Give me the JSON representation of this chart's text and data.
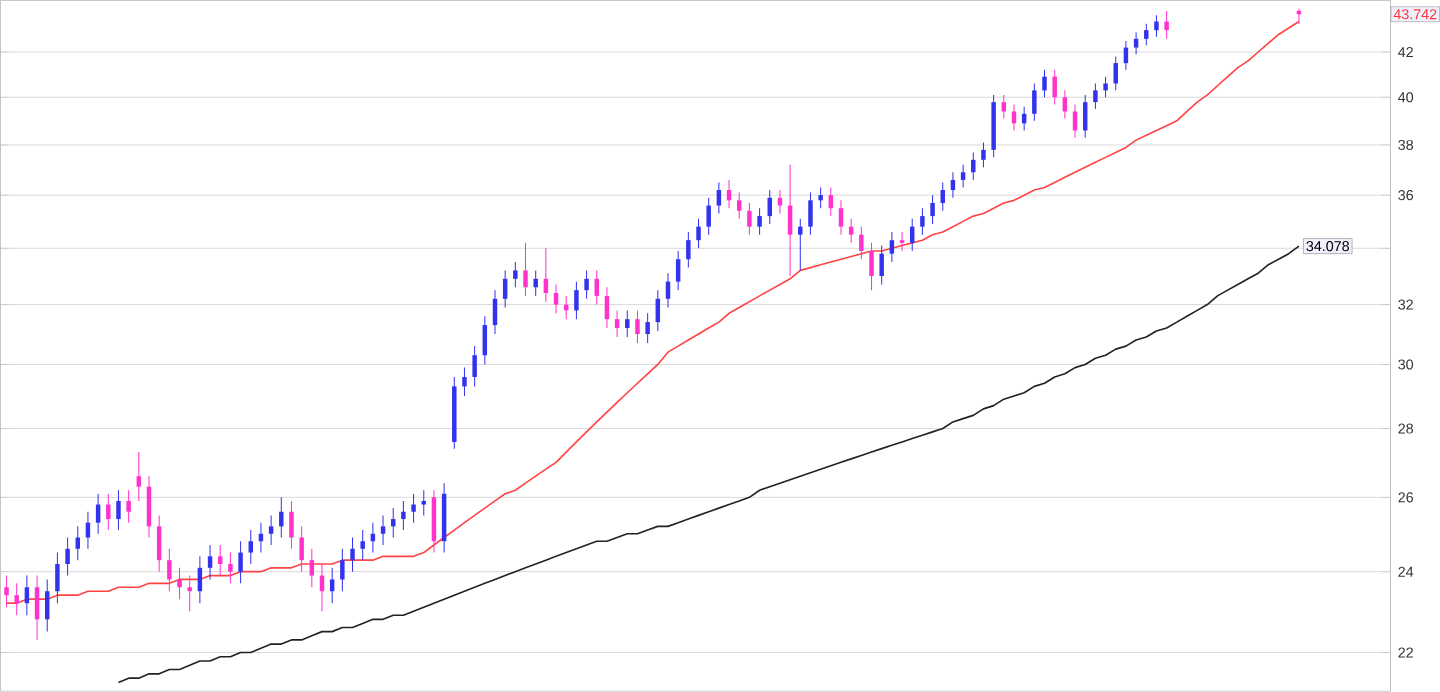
{
  "chart_data": {
    "type": "candlestick",
    "categories": [
      null,
      null,
      null,
      null,
      null,
      null,
      null,
      null,
      null,
      null,
      null,
      null,
      null,
      null,
      null,
      null,
      null,
      null,
      null,
      null,
      null,
      null,
      null,
      null,
      null,
      null,
      null,
      null,
      null,
      null,
      null,
      null,
      null,
      null,
      null,
      null,
      null,
      null,
      null,
      null,
      null,
      null,
      null,
      null,
      null,
      null,
      null,
      null,
      null,
      null,
      null,
      null,
      null,
      null,
      null,
      null,
      null,
      null,
      null,
      null,
      null,
      null,
      null,
      null,
      null,
      null,
      null,
      null,
      null,
      null,
      null,
      null,
      null,
      null,
      null,
      null,
      null,
      null,
      null,
      null,
      null,
      null,
      null,
      null,
      null,
      null,
      null,
      null,
      null,
      null,
      null,
      null,
      null,
      null,
      null,
      null,
      null,
      null,
      null,
      null,
      null,
      null,
      null,
      null,
      null,
      null,
      null,
      null,
      null,
      null,
      null,
      null,
      null,
      null,
      null,
      null,
      null,
      null,
      null,
      null,
      null,
      null,
      null,
      null,
      null,
      null,
      null,
      null
    ],
    "ohlc": [
      [
        23.6,
        23.9,
        23.1,
        23.4
      ],
      [
        23.4,
        23.7,
        22.9,
        23.2
      ],
      [
        23.2,
        23.9,
        22.9,
        23.6
      ],
      [
        23.6,
        23.9,
        22.3,
        22.8
      ],
      [
        22.8,
        23.8,
        22.5,
        23.5
      ],
      [
        23.5,
        24.5,
        23.2,
        24.2
      ],
      [
        24.2,
        24.9,
        23.9,
        24.6
      ],
      [
        24.6,
        25.2,
        24.3,
        24.9
      ],
      [
        24.9,
        25.6,
        24.6,
        25.3
      ],
      [
        25.3,
        26.1,
        25.0,
        25.8
      ],
      [
        25.8,
        26.1,
        25.1,
        25.4
      ],
      [
        25.4,
        26.2,
        25.1,
        25.9
      ],
      [
        25.9,
        26.2,
        25.3,
        25.6
      ],
      [
        26.6,
        27.3,
        25.9,
        26.3
      ],
      [
        26.3,
        26.6,
        24.9,
        25.2
      ],
      [
        25.2,
        25.5,
        24.0,
        24.3
      ],
      [
        24.3,
        24.6,
        23.5,
        23.8
      ],
      [
        23.8,
        24.1,
        23.3,
        23.6
      ],
      [
        23.6,
        23.9,
        23.0,
        23.5
      ],
      [
        23.5,
        24.4,
        23.2,
        24.1
      ],
      [
        24.1,
        24.7,
        23.8,
        24.4
      ],
      [
        24.4,
        24.7,
        23.9,
        24.2
      ],
      [
        24.2,
        24.5,
        23.7,
        24.0
      ],
      [
        24.0,
        24.8,
        23.7,
        24.5
      ],
      [
        24.5,
        25.1,
        24.2,
        24.8
      ],
      [
        24.8,
        25.3,
        24.5,
        25.0
      ],
      [
        25.0,
        25.5,
        24.7,
        25.2
      ],
      [
        25.2,
        26.0,
        24.9,
        25.6
      ],
      [
        25.6,
        25.9,
        24.6,
        24.9
      ],
      [
        24.9,
        25.2,
        24.0,
        24.3
      ],
      [
        24.3,
        24.6,
        23.6,
        23.9
      ],
      [
        23.9,
        24.2,
        23.0,
        23.5
      ],
      [
        23.5,
        24.1,
        23.2,
        23.8
      ],
      [
        23.8,
        24.6,
        23.5,
        24.3
      ],
      [
        24.3,
        24.9,
        24.0,
        24.6
      ],
      [
        24.6,
        25.1,
        24.3,
        24.8
      ],
      [
        24.8,
        25.3,
        24.5,
        25.0
      ],
      [
        25.0,
        25.5,
        24.7,
        25.2
      ],
      [
        25.2,
        25.7,
        24.9,
        25.4
      ],
      [
        25.4,
        25.9,
        25.1,
        25.6
      ],
      [
        25.6,
        26.1,
        25.3,
        25.8
      ],
      [
        25.8,
        26.2,
        25.5,
        25.9
      ],
      [
        26.0,
        26.2,
        24.5,
        24.8
      ],
      [
        24.8,
        26.4,
        24.5,
        26.1
      ],
      [
        27.6,
        29.6,
        27.4,
        29.3
      ],
      [
        29.3,
        29.9,
        29.0,
        29.6
      ],
      [
        29.6,
        30.6,
        29.3,
        30.3
      ],
      [
        30.3,
        31.6,
        30.0,
        31.3
      ],
      [
        31.3,
        32.5,
        31.0,
        32.2
      ],
      [
        32.2,
        33.2,
        31.9,
        32.9
      ],
      [
        32.9,
        33.5,
        32.6,
        33.2
      ],
      [
        33.2,
        34.2,
        32.3,
        32.6
      ],
      [
        32.6,
        33.2,
        32.3,
        32.9
      ],
      [
        32.9,
        34.0,
        32.1,
        32.4
      ],
      [
        32.4,
        32.7,
        31.7,
        32.0
      ],
      [
        32.0,
        32.3,
        31.5,
        31.8
      ],
      [
        31.8,
        32.8,
        31.5,
        32.5
      ],
      [
        32.5,
        33.2,
        32.2,
        32.9
      ],
      [
        32.9,
        33.2,
        32.0,
        32.3
      ],
      [
        32.3,
        32.6,
        31.2,
        31.5
      ],
      [
        31.5,
        31.8,
        30.9,
        31.2
      ],
      [
        31.2,
        31.8,
        30.9,
        31.5
      ],
      [
        31.5,
        31.8,
        30.7,
        31.0
      ],
      [
        31.0,
        31.7,
        30.7,
        31.4
      ],
      [
        31.4,
        32.5,
        31.1,
        32.2
      ],
      [
        32.2,
        33.1,
        31.9,
        32.8
      ],
      [
        32.8,
        33.9,
        32.5,
        33.6
      ],
      [
        33.6,
        34.6,
        33.3,
        34.3
      ],
      [
        34.3,
        35.1,
        34.0,
        34.8
      ],
      [
        34.8,
        35.9,
        34.5,
        35.6
      ],
      [
        35.6,
        36.5,
        35.3,
        36.2
      ],
      [
        36.2,
        36.6,
        35.5,
        35.8
      ],
      [
        35.8,
        36.1,
        35.1,
        35.4
      ],
      [
        35.4,
        35.7,
        34.5,
        34.8
      ],
      [
        34.8,
        35.5,
        34.5,
        35.2
      ],
      [
        35.2,
        36.2,
        34.9,
        35.9
      ],
      [
        35.9,
        36.2,
        35.3,
        35.6
      ],
      [
        35.6,
        37.2,
        33.0,
        34.5
      ],
      [
        34.5,
        35.1,
        33.2,
        34.8
      ],
      [
        34.8,
        36.1,
        34.5,
        35.8
      ],
      [
        35.8,
        36.3,
        35.5,
        36.0
      ],
      [
        36.0,
        36.3,
        35.2,
        35.5
      ],
      [
        35.5,
        35.8,
        34.5,
        34.8
      ],
      [
        34.8,
        35.1,
        34.2,
        34.5
      ],
      [
        34.5,
        34.8,
        33.6,
        33.9
      ],
      [
        33.9,
        34.2,
        32.5,
        33.0
      ],
      [
        33.0,
        34.1,
        32.7,
        33.8
      ],
      [
        33.8,
        34.6,
        33.5,
        34.3
      ],
      [
        34.3,
        34.6,
        33.9,
        34.2
      ],
      [
        34.2,
        35.1,
        33.9,
        34.8
      ],
      [
        34.8,
        35.5,
        34.5,
        35.2
      ],
      [
        35.2,
        36.0,
        34.9,
        35.7
      ],
      [
        35.7,
        36.5,
        35.4,
        36.2
      ],
      [
        36.2,
        36.9,
        35.9,
        36.6
      ],
      [
        36.6,
        37.2,
        36.3,
        36.9
      ],
      [
        36.9,
        37.7,
        36.6,
        37.4
      ],
      [
        37.4,
        38.1,
        37.1,
        37.8
      ],
      [
        37.8,
        40.1,
        37.5,
        39.8
      ],
      [
        39.8,
        40.1,
        39.1,
        39.4
      ],
      [
        39.4,
        39.7,
        38.6,
        38.9
      ],
      [
        38.9,
        39.6,
        38.6,
        39.3
      ],
      [
        39.3,
        40.6,
        39.0,
        40.3
      ],
      [
        40.3,
        41.2,
        40.0,
        40.9
      ],
      [
        40.9,
        41.2,
        39.7,
        40.0
      ],
      [
        40.0,
        40.3,
        39.1,
        39.4
      ],
      [
        39.4,
        39.7,
        38.3,
        38.6
      ],
      [
        38.6,
        40.1,
        38.3,
        39.8
      ],
      [
        39.8,
        40.6,
        39.5,
        40.3
      ],
      [
        40.3,
        40.9,
        40.0,
        40.6
      ],
      [
        40.6,
        41.8,
        40.3,
        41.5
      ],
      [
        41.5,
        42.5,
        41.2,
        42.2
      ],
      [
        42.2,
        42.9,
        41.9,
        42.6
      ],
      [
        42.6,
        43.3,
        42.3,
        43.0
      ],
      [
        43.0,
        43.7,
        42.7,
        43.4
      ],
      [
        43.4,
        43.9,
        42.6,
        43.0
      ],
      null,
      null,
      null,
      null,
      null,
      null,
      null,
      null,
      null,
      null,
      null,
      null,
      [
        43.9,
        44.0,
        43.3,
        43.742
      ]
    ],
    "value_labels": [
      null,
      null,
      null,
      null,
      null,
      null,
      null,
      null,
      null,
      null,
      null,
      null,
      null,
      null,
      null,
      null,
      null,
      null,
      null,
      null,
      null,
      null,
      null,
      null,
      null,
      null,
      null,
      null,
      null,
      null,
      null,
      null,
      null,
      null,
      null,
      null,
      null,
      null,
      null,
      null,
      null,
      null,
      null,
      null,
      null,
      null,
      null,
      null,
      null,
      null,
      null,
      null,
      null,
      null,
      null,
      null,
      null,
      null,
      null,
      null,
      null,
      null,
      null,
      null,
      null,
      null,
      null,
      null,
      null,
      null,
      null,
      null,
      null,
      null,
      null,
      null,
      null,
      null,
      null,
      null,
      null,
      null,
      null,
      null,
      null,
      null,
      null,
      null,
      null,
      null,
      null,
      null,
      null,
      null,
      null,
      null,
      null,
      null,
      null,
      null,
      null,
      null,
      null,
      null,
      null,
      null,
      null,
      null,
      null,
      null,
      null,
      null,
      null,
      null,
      null,
      null,
      null,
      null,
      null,
      null,
      null,
      null,
      null,
      null,
      null,
      null,
      null,
      "43.742"
    ],
    "colors": [
      "#ff33cc",
      "#ff33cc",
      "#3333ee",
      "#ff33cc",
      "#3333ee",
      "#3333ee",
      "#3333ee",
      "#3333ee",
      "#3333ee",
      "#3333ee",
      "#ff33cc",
      "#3333ee",
      "#ff33cc",
      "#ff33cc",
      "#ff33cc",
      "#ff33cc",
      "#ff33cc",
      "#ff33cc",
      "#ff33cc",
      "#3333ee",
      "#3333ee",
      "#ff33cc",
      "#ff33cc",
      "#3333ee",
      "#3333ee",
      "#3333ee",
      "#3333ee",
      "#3333ee",
      "#ff33cc",
      "#ff33cc",
      "#ff33cc",
      "#ff33cc",
      "#3333ee",
      "#3333ee",
      "#3333ee",
      "#3333ee",
      "#3333ee",
      "#3333ee",
      "#3333ee",
      "#3333ee",
      "#3333ee",
      "#3333ee",
      "#ff33cc",
      "#3333ee",
      "#3333ee",
      "#3333ee",
      "#3333ee",
      "#3333ee",
      "#3333ee",
      "#3333ee",
      "#3333ee",
      "#ff33cc",
      "#3333ee",
      "#ff33cc",
      "#ff33cc",
      "#ff33cc",
      "#3333ee",
      "#3333ee",
      "#ff33cc",
      "#ff33cc",
      "#ff33cc",
      "#3333ee",
      "#ff33cc",
      "#3333ee",
      "#3333ee",
      "#3333ee",
      "#3333ee",
      "#3333ee",
      "#3333ee",
      "#3333ee",
      "#3333ee",
      "#ff33cc",
      "#ff33cc",
      "#ff33cc",
      "#3333ee",
      "#3333ee",
      "#ff33cc",
      "#ff33cc",
      "#3333ee",
      "#3333ee",
      "#3333ee",
      "#ff33cc",
      "#ff33cc",
      "#ff33cc",
      "#ff33cc",
      "#ff33cc",
      "#3333ee",
      "#3333ee",
      "#ff33cc",
      "#3333ee",
      "#3333ee",
      "#3333ee",
      "#3333ee",
      "#3333ee",
      "#3333ee",
      "#3333ee",
      "#3333ee",
      "#3333ee",
      "#ff33cc",
      "#ff33cc",
      "#3333ee",
      "#3333ee",
      "#3333ee",
      "#ff33cc",
      "#ff33cc",
      "#ff33cc",
      "#3333ee",
      "#3333ee",
      "#3333ee",
      "#3333ee",
      "#3333ee",
      "#3333ee",
      "#3333ee",
      "#3333ee",
      "#ff33cc",
      null,
      null,
      null,
      null,
      null,
      null,
      null,
      null,
      null,
      null,
      null,
      null,
      "#ff33cc"
    ],
    "series": [
      {
        "type": "line",
        "color": "#ff4444",
        "values": [
          23.2,
          23.2,
          23.3,
          23.3,
          23.3,
          23.4,
          23.4,
          23.4,
          23.5,
          23.5,
          23.5,
          23.6,
          23.6,
          23.6,
          23.7,
          23.7,
          23.7,
          23.8,
          23.8,
          23.8,
          23.9,
          23.9,
          23.9,
          24.0,
          24.0,
          24.0,
          24.1,
          24.1,
          24.1,
          24.2,
          24.2,
          24.2,
          24.2,
          24.3,
          24.3,
          24.3,
          24.3,
          24.4,
          24.4,
          24.4,
          24.4,
          24.5,
          24.7,
          24.9,
          25.1,
          25.3,
          25.5,
          25.7,
          25.9,
          26.1,
          26.2,
          26.4,
          26.6,
          26.8,
          27.0,
          27.3,
          27.6,
          27.9,
          28.2,
          28.5,
          28.8,
          29.1,
          29.4,
          29.7,
          30.0,
          30.4,
          30.6,
          30.8,
          31.0,
          31.2,
          31.4,
          31.7,
          31.9,
          32.1,
          32.3,
          32.5,
          32.7,
          32.9,
          33.2,
          33.3,
          33.4,
          33.5,
          33.6,
          33.7,
          33.8,
          33.9,
          33.9,
          34.0,
          34.1,
          34.2,
          34.3,
          34.5,
          34.6,
          34.8,
          35.0,
          35.2,
          35.3,
          35.5,
          35.7,
          35.8,
          36.0,
          36.2,
          36.3,
          36.5,
          36.7,
          36.9,
          37.1,
          37.3,
          37.5,
          37.7,
          37.9,
          38.2,
          38.4,
          38.6,
          38.8,
          39.0,
          39.4,
          39.8,
          40.1,
          40.5,
          40.9,
          41.3,
          41.6,
          42.0,
          42.4,
          42.8,
          43.1,
          43.4
        ]
      },
      {
        "type": "line",
        "color": "#222222",
        "values": [
          null,
          null,
          null,
          null,
          null,
          null,
          null,
          null,
          null,
          null,
          null,
          21.3,
          21.4,
          21.4,
          21.5,
          21.5,
          21.6,
          21.6,
          21.7,
          21.8,
          21.8,
          21.9,
          21.9,
          22.0,
          22.0,
          22.1,
          22.2,
          22.2,
          22.3,
          22.3,
          22.4,
          22.5,
          22.5,
          22.6,
          22.6,
          22.7,
          22.8,
          22.8,
          22.9,
          22.9,
          23.0,
          23.1,
          23.2,
          23.3,
          23.4,
          23.5,
          23.6,
          23.7,
          23.8,
          23.9,
          24.0,
          24.1,
          24.2,
          24.3,
          24.4,
          24.5,
          24.6,
          24.7,
          24.8,
          24.8,
          24.9,
          25.0,
          25.0,
          25.1,
          25.2,
          25.2,
          25.3,
          25.4,
          25.5,
          25.6,
          25.7,
          25.8,
          25.9,
          26.0,
          26.2,
          26.3,
          26.4,
          26.5,
          26.6,
          26.7,
          26.8,
          26.9,
          27.0,
          27.1,
          27.2,
          27.3,
          27.4,
          27.5,
          27.6,
          27.7,
          27.8,
          27.9,
          28.0,
          28.2,
          28.3,
          28.4,
          28.6,
          28.7,
          28.9,
          29.0,
          29.1,
          29.3,
          29.4,
          29.6,
          29.7,
          29.9,
          30.0,
          30.2,
          30.3,
          30.5,
          30.6,
          30.8,
          30.9,
          31.1,
          31.2,
          31.4,
          31.6,
          31.8,
          32.0,
          32.3,
          32.5,
          32.7,
          32.9,
          33.1,
          33.4,
          33.6,
          33.8,
          34.078
        ],
        "value_labels": [
          null,
          null,
          null,
          null,
          null,
          null,
          null,
          null,
          null,
          null,
          null,
          null,
          null,
          null,
          null,
          null,
          null,
          null,
          null,
          null,
          null,
          null,
          null,
          null,
          null,
          null,
          null,
          null,
          null,
          null,
          null,
          null,
          null,
          null,
          null,
          null,
          null,
          null,
          null,
          null,
          null,
          null,
          null,
          null,
          null,
          null,
          null,
          null,
          null,
          null,
          null,
          null,
          null,
          null,
          null,
          null,
          null,
          null,
          null,
          null,
          null,
          null,
          null,
          null,
          null,
          null,
          null,
          null,
          null,
          null,
          null,
          null,
          null,
          null,
          null,
          null,
          null,
          null,
          null,
          null,
          null,
          null,
          null,
          null,
          null,
          null,
          null,
          null,
          null,
          null,
          null,
          null,
          null,
          null,
          null,
          null,
          null,
          null,
          null,
          null,
          null,
          null,
          null,
          null,
          null,
          null,
          null,
          null,
          null,
          null,
          null,
          null,
          null,
          null,
          null,
          null,
          null,
          null,
          null,
          null,
          null,
          null,
          null,
          null,
          null,
          null,
          null,
          "34.078"
        ]
      }
    ],
    "log": "y",
    "ylim": [
      21.1,
      44.4
    ],
    "yticks": [
      22,
      24,
      26,
      28,
      30,
      32,
      {
        "value": 34,
        "label": null
      },
      36,
      38,
      40,
      42
    ],
    "grid": "y",
    "tick_labels": "y"
  }
}
